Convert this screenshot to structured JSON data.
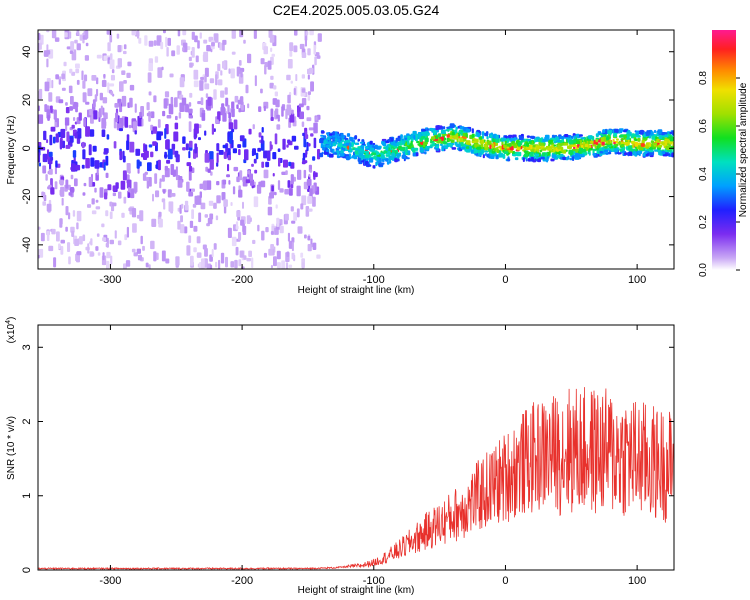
{
  "title": "C2E4.2025.005.03.05.G24",
  "colors": {
    "snr_line": "#e8312c",
    "spectrogram_low": "#7b2cf0",
    "spectrogram_high": "#ff1a3c"
  },
  "chart_data": [
    {
      "type": "heatmap",
      "xlabel": "Height of straight line (km)",
      "ylabel": "Frequency (Hz)",
      "xlim": [
        -355,
        128
      ],
      "ylim": [
        -50,
        49
      ],
      "xticks": [
        "-300",
        "-200",
        "-100",
        "0",
        "100"
      ],
      "yticks": [
        "40",
        "20",
        "0",
        "-20",
        "-40"
      ],
      "grid": false,
      "description_values": {
        "noise_region_x": [
          -355,
          -140
        ],
        "signal_region_x": [
          -140,
          128
        ],
        "ridge": {
          "x": [
            -140,
            -120,
            -100,
            -80,
            -60,
            -40,
            -20,
            0,
            20,
            40,
            60,
            80,
            100,
            128
          ],
          "freq": [
            2,
            1,
            -3,
            0,
            3,
            5,
            2,
            0,
            0,
            0,
            1,
            3,
            2,
            2
          ]
        }
      },
      "colorbar": {
        "label": "Normalized spectral amplitude",
        "range": [
          0.0,
          1.0
        ],
        "ticks": [
          "0.0",
          "0.2",
          "0.4",
          "0.6",
          "0.8"
        ]
      }
    },
    {
      "type": "line",
      "xlabel": "Height of straight line (km)",
      "ylabel": "SNR (10 * v/v)",
      "multiplier_label": "(x10",
      "multiplier_exp": "4",
      "multiplier_close": ")",
      "xlim": [
        -355,
        128
      ],
      "ylim": [
        0,
        3.3
      ],
      "xticks": [
        "-300",
        "-200",
        "-100",
        "0",
        "100"
      ],
      "yticks": [
        "0",
        "1",
        "2",
        "3"
      ],
      "grid": false,
      "series": [
        {
          "x": [
            -355,
            -150,
            -130,
            -110,
            -100,
            -90,
            -80,
            -70,
            -60,
            -50,
            -40,
            -30,
            -20,
            -10,
            0,
            10,
            20,
            30,
            40,
            50,
            60,
            70,
            80,
            90,
            100,
            110,
            120,
            128
          ],
          "y": [
            0.02,
            0.02,
            0.03,
            0.06,
            0.1,
            0.18,
            0.28,
            0.4,
            0.52,
            0.62,
            0.72,
            0.85,
            1.0,
            1.12,
            1.25,
            1.4,
            1.5,
            1.56,
            1.6,
            1.62,
            1.6,
            1.6,
            1.58,
            1.55,
            1.5,
            1.45,
            1.42,
            1.4
          ]
        }
      ]
    }
  ]
}
